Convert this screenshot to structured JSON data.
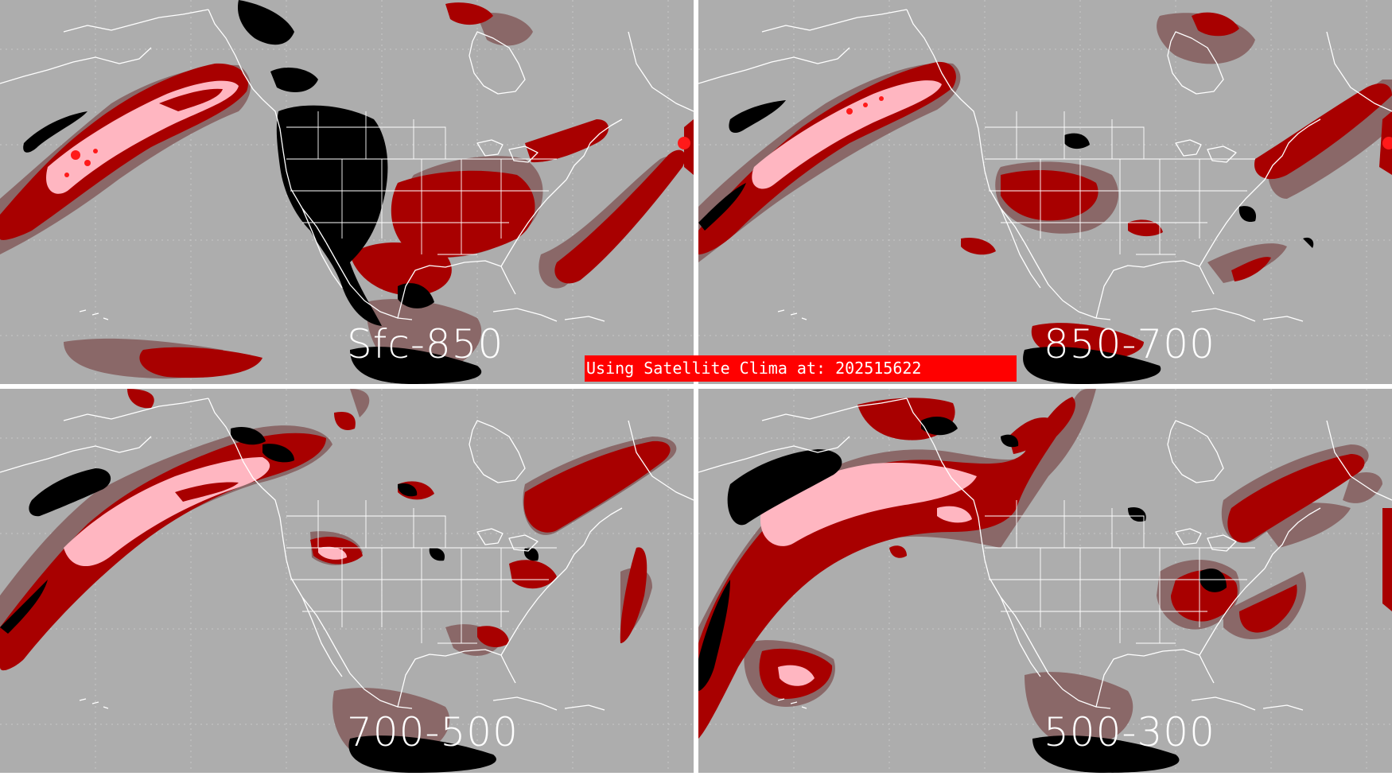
{
  "panels": [
    {
      "id": "tl",
      "label": "Sfc-850"
    },
    {
      "id": "tr",
      "label": "850-700"
    },
    {
      "id": "bl",
      "label": "700-500"
    },
    {
      "id": "br",
      "label": "500-300"
    }
  ],
  "banner": {
    "text": "Using Satellite Clima at: 202515622"
  },
  "colors": {
    "background": "#adadad",
    "dark_red": "#a80000",
    "mauve": "#8a6868",
    "pink": "#ffb6c1",
    "bright_red": "#ff1a1a",
    "black": "#000000",
    "coastline": "#ffffff",
    "banner": "#ff0000"
  }
}
